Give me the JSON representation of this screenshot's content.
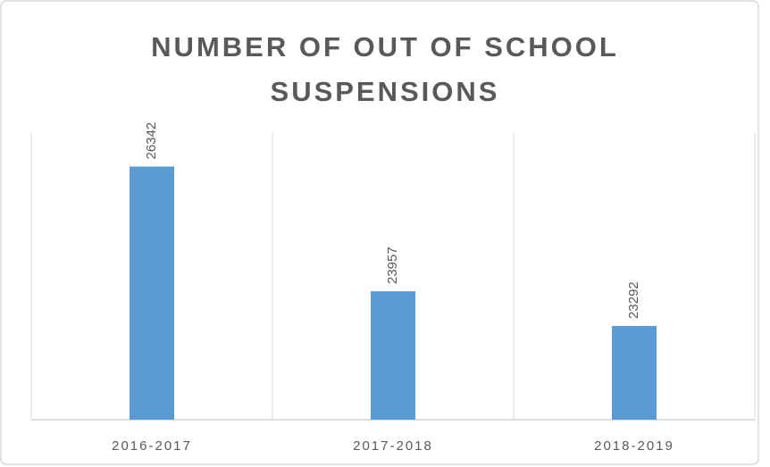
{
  "chart_data": {
    "type": "bar",
    "title": "NUMBER OF OUT OF SCHOOL SUSPENSIONS",
    "categories": [
      "2016-2017",
      "2017-2018",
      "2018-2019"
    ],
    "values": [
      26342,
      23957,
      23292
    ],
    "color": "#5b9bd5",
    "ylim": [
      21500,
      27000
    ]
  }
}
